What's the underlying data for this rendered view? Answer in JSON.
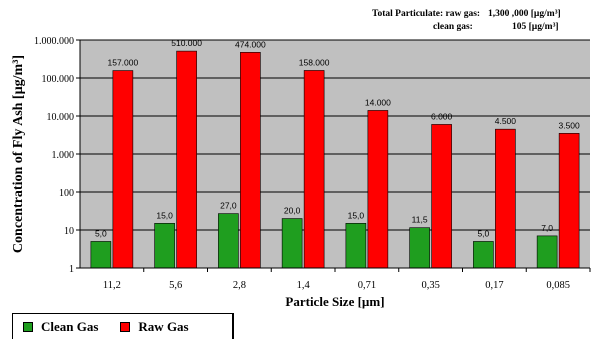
{
  "header_notes": {
    "raw_label": "Total Particulate: raw gas:",
    "raw_value": "1,300 ,000 [µg/m³]",
    "clean_label": "clean gas:",
    "clean_value": "105 [µg/m³]"
  },
  "legend": {
    "clean_label": "Clean Gas",
    "raw_label": "Raw Gas"
  },
  "colors": {
    "clean": "#1f9e1f",
    "raw": "#ff0000",
    "plot_bg": "#c0c0c0"
  },
  "chart_data": {
    "type": "bar",
    "title": "",
    "xlabel": "Particle Size [µm]",
    "ylabel": "Concentration of Fly Ash [µg/m³]",
    "yscale": "log",
    "ylim": [
      1,
      1000000
    ],
    "yticks": [
      "1",
      "10",
      "100",
      "1.000",
      "10.000",
      "100.000",
      "1.000.000"
    ],
    "grid": true,
    "legend_position": "bottom-left",
    "categories": [
      "11,2",
      "5,6",
      "2,8",
      "1,4",
      "0,71",
      "0,35",
      "0,17",
      "0,085"
    ],
    "series": [
      {
        "name": "Clean Gas",
        "values": [
          5.0,
          15.0,
          27.0,
          20.0,
          15.0,
          11.5,
          5.0,
          7.0
        ],
        "labels": [
          "5,0",
          "15,0",
          "27,0",
          "20,0",
          "15,0",
          "11,5",
          "5,0",
          "7,0"
        ]
      },
      {
        "name": "Raw Gas",
        "values": [
          157000,
          510000,
          474000,
          158000,
          14000,
          6000,
          4500,
          3500
        ],
        "labels": [
          "157.000",
          "510.000",
          "474.000",
          "158.000",
          "14.000",
          "6.000",
          "4.500",
          "3.500"
        ]
      }
    ]
  }
}
